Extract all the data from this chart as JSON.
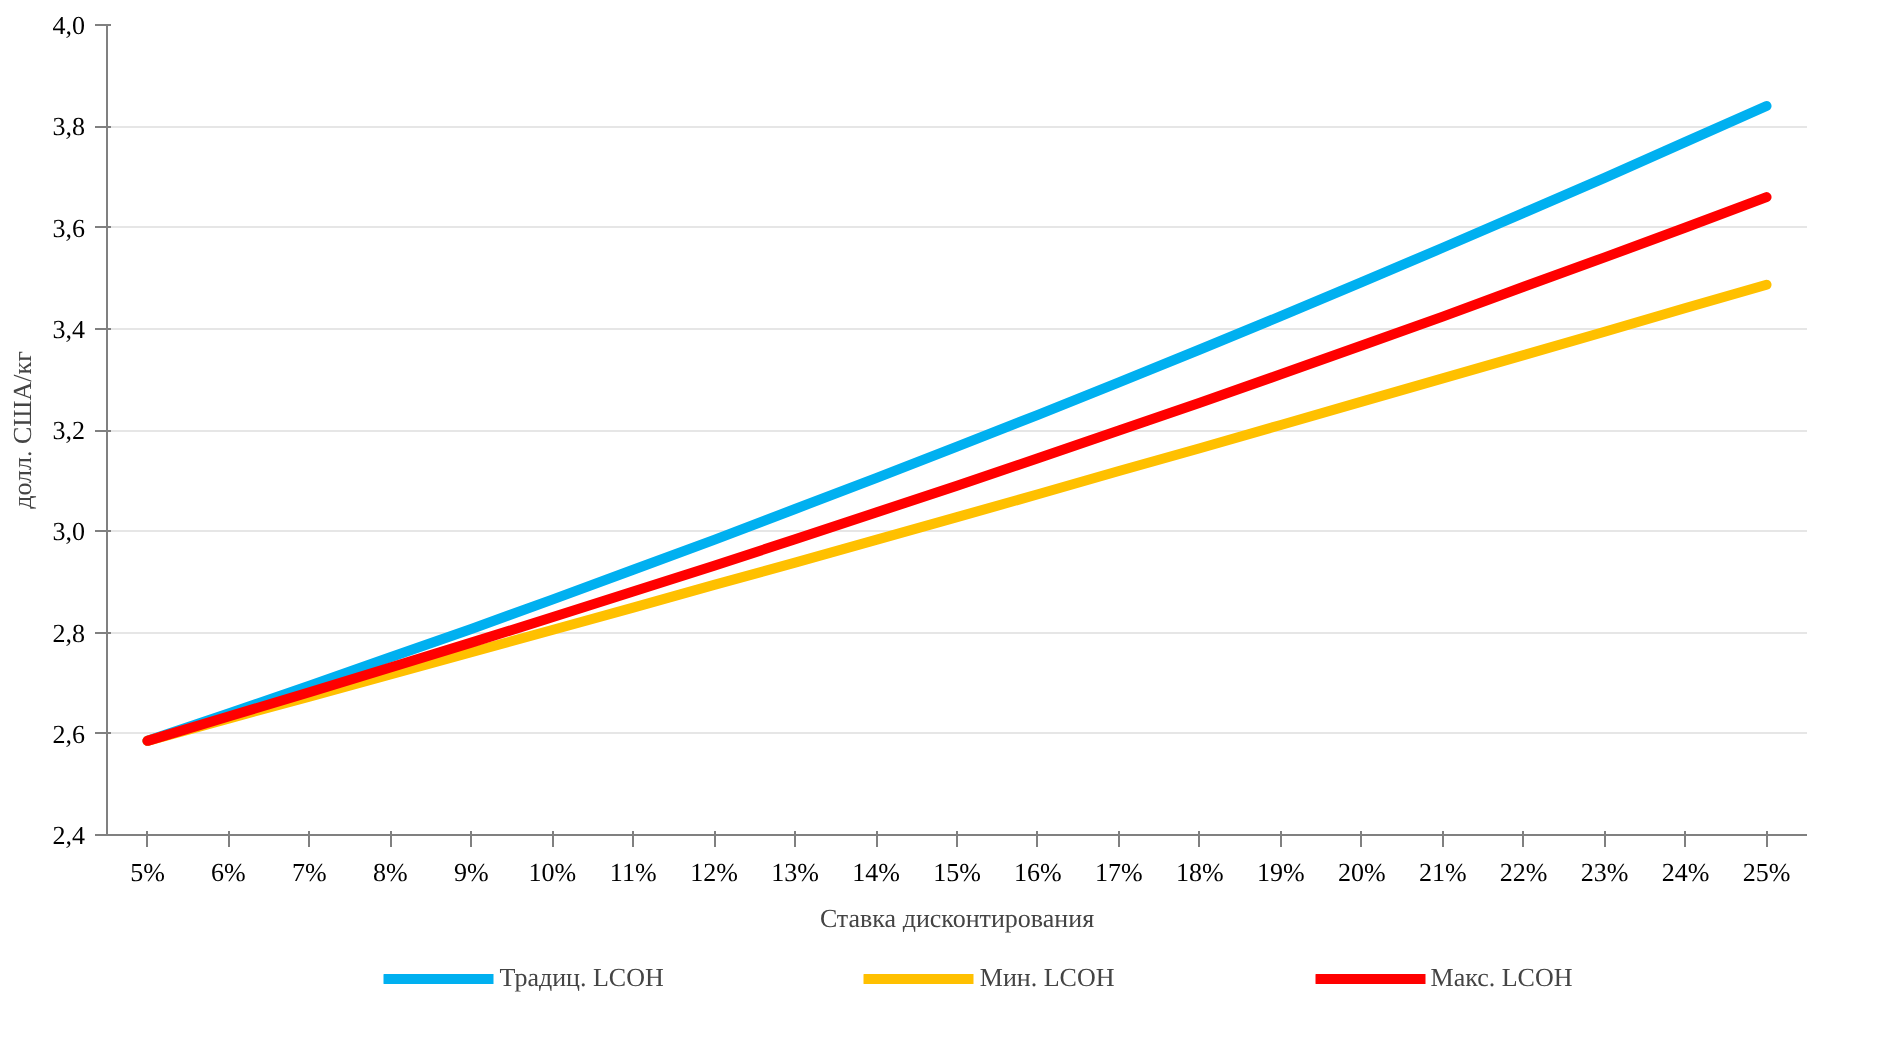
{
  "chart_data": {
    "type": "line",
    "xlabel": "Ставка дисконтирования",
    "ylabel": "долл. США/кг",
    "categories": [
      "5%",
      "6%",
      "7%",
      "8%",
      "9%",
      "10%",
      "11%",
      "12%",
      "13%",
      "14%",
      "15%",
      "16%",
      "17%",
      "18%",
      "19%",
      "20%",
      "21%",
      "22%",
      "23%",
      "24%",
      "25%"
    ],
    "series": [
      {
        "name": "Традиц. LCOH",
        "color": "#00b0f0",
        "values": [
          2.586,
          2.64,
          2.695,
          2.751,
          2.807,
          2.865,
          2.924,
          2.983,
          3.044,
          3.105,
          3.167,
          3.23,
          3.294,
          3.359,
          3.425,
          3.492,
          3.56,
          3.629,
          3.698,
          3.769,
          3.84
        ]
      },
      {
        "name": "Мин. LCOH",
        "color": "#ffc000",
        "values": [
          2.586,
          2.63,
          2.673,
          2.717,
          2.761,
          2.805,
          2.849,
          2.894,
          2.938,
          2.983,
          3.028,
          3.073,
          3.119,
          3.164,
          3.21,
          3.256,
          3.302,
          3.348,
          3.394,
          3.441,
          3.487
        ]
      },
      {
        "name": "Макс. LCOH",
        "color": "#ff0000",
        "values": [
          2.586,
          2.634,
          2.682,
          2.731,
          2.78,
          2.83,
          2.881,
          2.932,
          2.984,
          3.037,
          3.09,
          3.144,
          3.199,
          3.254,
          3.31,
          3.367,
          3.424,
          3.483,
          3.541,
          3.6,
          3.66
        ]
      }
    ],
    "ylim": [
      2.4,
      4.0
    ],
    "yticks": [
      {
        "value": 2.4,
        "label": "2,4"
      },
      {
        "value": 2.6,
        "label": "2,6"
      },
      {
        "value": 2.8,
        "label": "2,8"
      },
      {
        "value": 3.0,
        "label": "3,0"
      },
      {
        "value": 3.2,
        "label": "3,2"
      },
      {
        "value": 3.4,
        "label": "3,4"
      },
      {
        "value": 3.6,
        "label": "3,6"
      },
      {
        "value": 3.8,
        "label": "3,8"
      },
      {
        "value": 4.0,
        "label": "4,0"
      }
    ],
    "grid": "y",
    "legend": "bottom",
    "marker": "none",
    "line_style": "solid"
  }
}
